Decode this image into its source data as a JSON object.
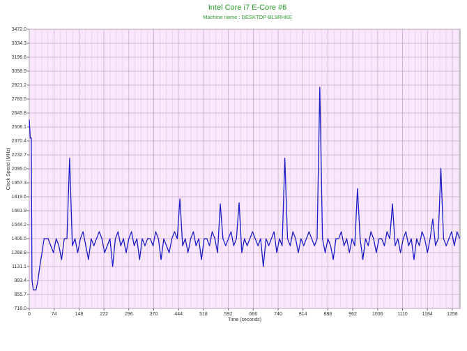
{
  "chart_data": {
    "type": "line",
    "title": "Intel Core i7 E-Core #6",
    "subtitle": "Machine name : DESKTOP-BL9RHKE",
    "x_label": "Time (seconds)",
    "y_label": "Clock Speed (MHz)",
    "xlim": [
      0,
      1281
    ],
    "xticks": [
      0,
      74,
      148,
      222,
      296,
      370,
      444,
      518,
      592,
      666,
      740,
      814,
      888,
      962,
      1036,
      1110,
      1184,
      1258
    ],
    "ylim": [
      718,
      3472
    ],
    "yticks": [
      {
        "value": 718,
        "label": "718.0"
      },
      855.7,
      993.4,
      1131.1,
      1268.8,
      1406.5,
      1544.2,
      1681.9,
      1819.6,
      1957.3,
      {
        "value": 2095,
        "label": "2095.0"
      },
      2232.7,
      2370.4,
      2508.1,
      2645.8,
      2783.5,
      2921.2,
      3058.9,
      3196.6,
      3334.3,
      {
        "value": 3472,
        "label": "3472.0"
      }
    ],
    "grid": true,
    "x": [
      0,
      3,
      6,
      8,
      12,
      20,
      26,
      32,
      38,
      44,
      48,
      56,
      64,
      72,
      80,
      88,
      96,
      104,
      112,
      120,
      128,
      136,
      144,
      152,
      160,
      168,
      176,
      184,
      192,
      200,
      208,
      216,
      224,
      232,
      240,
      248,
      256,
      264,
      272,
      280,
      288,
      296,
      304,
      312,
      320,
      328,
      336,
      344,
      352,
      360,
      368,
      376,
      384,
      392,
      400,
      408,
      416,
      424,
      432,
      440,
      448,
      456,
      464,
      472,
      480,
      488,
      496,
      504,
      512,
      520,
      528,
      536,
      544,
      552,
      560,
      568,
      576,
      584,
      592,
      600,
      608,
      616,
      624,
      632,
      640,
      648,
      656,
      664,
      672,
      680,
      688,
      696,
      704,
      712,
      720,
      728,
      736,
      744,
      752,
      760,
      768,
      776,
      784,
      792,
      800,
      808,
      816,
      824,
      832,
      840,
      848,
      856,
      864,
      872,
      880,
      888,
      896,
      904,
      912,
      920,
      928,
      936,
      944,
      952,
      960,
      968,
      976,
      984,
      992,
      1000,
      1008,
      1016,
      1024,
      1032,
      1040,
      1048,
      1056,
      1064,
      1072,
      1080,
      1088,
      1096,
      1104,
      1112,
      1120,
      1128,
      1136,
      1144,
      1152,
      1160,
      1168,
      1176,
      1184,
      1192,
      1200,
      1208,
      1216,
      1224,
      1232,
      1240,
      1248,
      1256,
      1264,
      1272,
      1280
    ],
    "series": [
      {
        "name": "Clock Speed",
        "color": "#1a1ac8",
        "values": [
          2580,
          2400,
          2400,
          1000,
          900,
          900,
          1000,
          1150,
          1270,
          1406,
          1406,
          1406,
          1337,
          1268,
          1406,
          1337,
          1200,
          1406,
          1406,
          2200,
          1337,
          1406,
          1268,
          1406,
          1475,
          1337,
          1200,
          1406,
          1337,
          1406,
          1475,
          1406,
          1268,
          1337,
          1406,
          1131,
          1406,
          1475,
          1337,
          1406,
          1268,
          1406,
          1475,
          1337,
          1406,
          1200,
          1406,
          1337,
          1406,
          1406,
          1337,
          1475,
          1406,
          1200,
          1406,
          1337,
          1268,
          1406,
          1475,
          1406,
          1800,
          1337,
          1406,
          1268,
          1406,
          1475,
          1337,
          1406,
          1200,
          1406,
          1406,
          1337,
          1475,
          1406,
          1268,
          1750,
          1406,
          1337,
          1406,
          1475,
          1337,
          1406,
          1760,
          1268,
          1406,
          1337,
          1406,
          1475,
          1406,
          1337,
          1406,
          1131,
          1406,
          1337,
          1406,
          1475,
          1268,
          1406,
          1337,
          2200,
          1406,
          1337,
          1475,
          1406,
          1268,
          1406,
          1337,
          1406,
          1475,
          1406,
          1337,
          1406,
          2900,
          1406,
          1268,
          1406,
          1337,
          1200,
          1406,
          1406,
          1475,
          1337,
          1406,
          1268,
          1406,
          1337,
          1900,
          1406,
          1200,
          1406,
          1337,
          1475,
          1406,
          1268,
          1406,
          1406,
          1337,
          1475,
          1406,
          1750,
          1337,
          1406,
          1268,
          1406,
          1475,
          1337,
          1406,
          1200,
          1406,
          1337,
          1475,
          1406,
          1268,
          1406,
          1600,
          1337,
          1406,
          2100,
          1406,
          1337,
          1406,
          1475,
          1337,
          1475,
          1406
        ]
      }
    ]
  }
}
